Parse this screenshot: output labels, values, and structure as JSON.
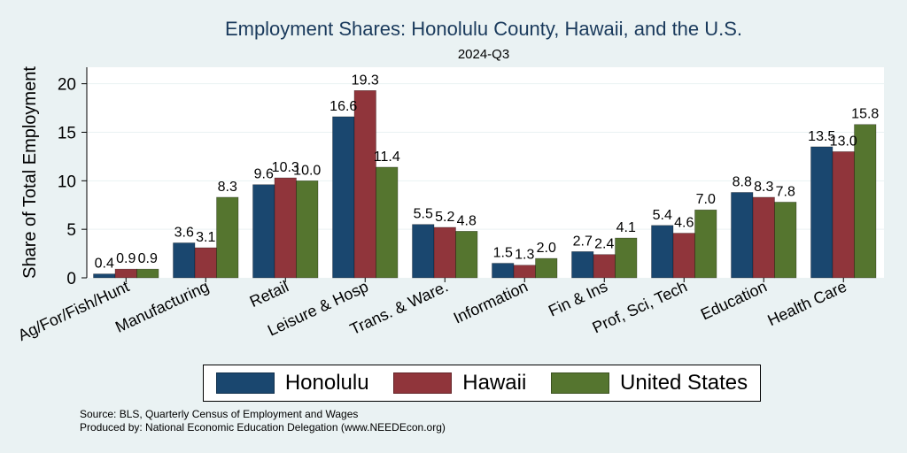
{
  "chart_data": {
    "type": "bar",
    "title": "Employment Shares: Honolulu County, Hawaii, and the U.S.",
    "subtitle": "2024-Q3",
    "ylabel": "Share of Total Employment",
    "xlabel": "",
    "ylim": [
      0,
      21.7
    ],
    "yticks": [
      0,
      5,
      10,
      15,
      20
    ],
    "grid": true,
    "legend_position": "bottom",
    "categories": [
      "Ag/For/Fish/Hunt",
      "Manufacturing",
      "Retail",
      "Leisure & Hosp",
      "Trans. & Ware.",
      "Information",
      "Fin & Ins",
      "Prof, Sci, Tech",
      "Education",
      "Health Care"
    ],
    "series": [
      {
        "name": "Honolulu",
        "color": "#1a476f",
        "values": [
          0.4,
          3.6,
          9.6,
          16.6,
          5.5,
          1.5,
          2.7,
          5.4,
          8.8,
          13.5
        ]
      },
      {
        "name": "Hawaii",
        "color": "#90353b",
        "values": [
          0.9,
          3.1,
          10.3,
          19.3,
          5.2,
          1.3,
          2.4,
          4.6,
          8.3,
          13.0
        ]
      },
      {
        "name": "United States",
        "color": "#55752f",
        "values": [
          0.9,
          8.3,
          10.0,
          11.4,
          4.8,
          2.0,
          4.1,
          7.0,
          7.8,
          15.8
        ]
      }
    ]
  },
  "notes": {
    "source": "Source: BLS, Quarterly Census of Employment and Wages",
    "produced_by": "Produced by: National Economic Education Delegation (www.NEEDEcon.org)"
  }
}
